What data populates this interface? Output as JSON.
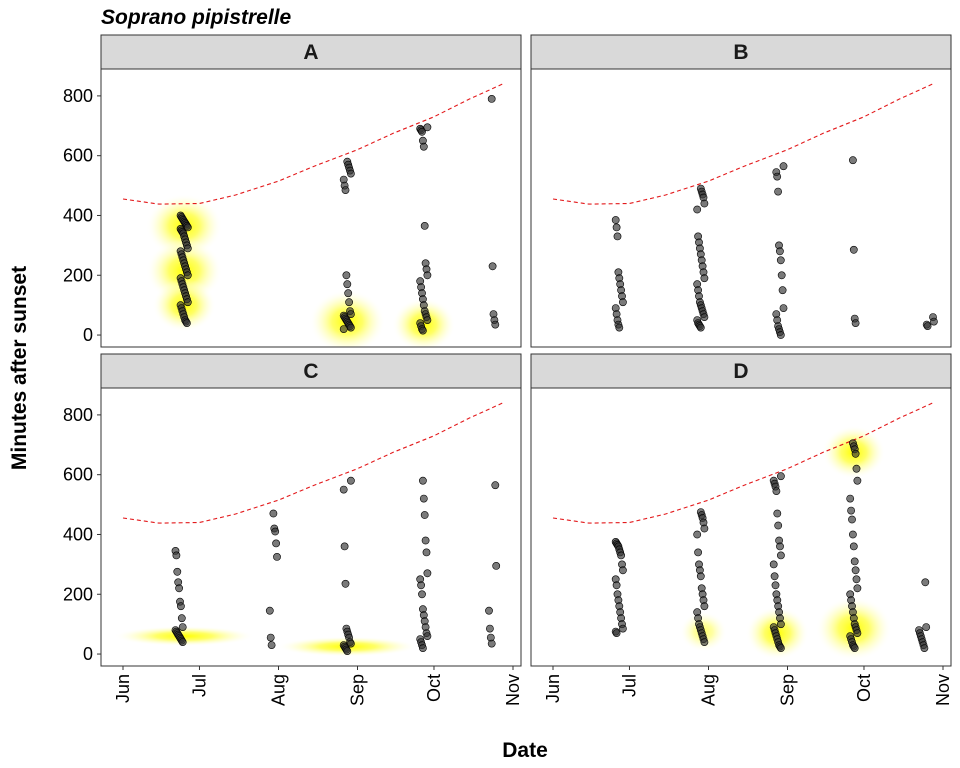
{
  "chart_data": {
    "type": "scatter",
    "title": "Soprano pipistrelle",
    "xlabel": "Date",
    "ylabel": "Minutes after sunset",
    "x_ticks": [
      "Jun",
      "Jul",
      "Aug",
      "Sep",
      "Oct",
      "Nov"
    ],
    "x_range": [
      "2021-06-01",
      "2021-11-01"
    ],
    "y_ticks": [
      0,
      200,
      400,
      600,
      800
    ],
    "ylim": [
      -40,
      890
    ],
    "grid": false,
    "colors": {
      "points": "#333333",
      "sunrise_line": "#e31a1c",
      "density": "#ffff00",
      "strip": "#d9d9d9"
    },
    "sunrise_curve": {
      "name": "",
      "style": "dashed",
      "x": [
        "2021-06-01",
        "2021-06-15",
        "2021-07-01",
        "2021-07-15",
        "2021-08-01",
        "2021-08-15",
        "2021-09-01",
        "2021-09-15",
        "2021-10-01",
        "2021-10-15",
        "2021-10-28"
      ],
      "y": [
        455,
        438,
        440,
        468,
        515,
        565,
        620,
        675,
        730,
        790,
        840
      ]
    },
    "panels": [
      {
        "label": "A",
        "groups": [
          {
            "date": "2021-06-25",
            "y": [
              400,
              395,
              390,
              385,
              380,
              375,
              370,
              365,
              360,
              355,
              350,
              345,
              340,
              330,
              320,
              310,
              300,
              290,
              280,
              270,
              260,
              250,
              240,
              230,
              220,
              210,
              200,
              190,
              180,
              170,
              160,
              150,
              140,
              130,
              120,
              110,
              100,
              90,
              80,
              70,
              60,
              50,
              45,
              40
            ]
          },
          {
            "date": "2021-08-28",
            "y": [
              580,
              570,
              560,
              550,
              540,
              520,
              500,
              485,
              200,
              170,
              140,
              110,
              80,
              70,
              65,
              60,
              55,
              50,
              45,
              40,
              35,
              30,
              25,
              20
            ]
          },
          {
            "date": "2021-09-27",
            "y": [
              695,
              690,
              685,
              680,
              650,
              630,
              365,
              240,
              220,
              200,
              180,
              160,
              140,
              120,
              100,
              80,
              70,
              60,
              50,
              40,
              30,
              20,
              15
            ]
          },
          {
            "date": "2021-10-24",
            "y": [
              790,
              230,
              70,
              50,
              35
            ]
          }
        ],
        "density_hotspots": [
          {
            "date": "2021-06-25",
            "y": 365,
            "intensity": "high"
          },
          {
            "date": "2021-06-25",
            "y": 215,
            "intensity": "high"
          },
          {
            "date": "2021-06-25",
            "y": 100,
            "intensity": "medium"
          },
          {
            "date": "2021-08-28",
            "y": 45,
            "intensity": "high"
          },
          {
            "date": "2021-09-27",
            "y": 35,
            "intensity": "medium"
          }
        ]
      },
      {
        "label": "B",
        "groups": [
          {
            "date": "2021-06-27",
            "y": [
              385,
              360,
              330,
              210,
              190,
              170,
              150,
              130,
              110,
              90,
              70,
              50,
              35,
              25
            ]
          },
          {
            "date": "2021-07-29",
            "y": [
              490,
              480,
              470,
              460,
              440,
              420,
              330,
              310,
              290,
              270,
              250,
              230,
              210,
              190,
              170,
              150,
              130,
              110,
              100,
              90,
              80,
              70,
              60,
              50,
              40,
              35,
              30,
              25
            ]
          },
          {
            "date": "2021-08-29",
            "y": [
              565,
              545,
              530,
              480,
              300,
              280,
              250,
              200,
              150,
              90,
              70,
              50,
              30,
              20,
              10,
              0
            ]
          },
          {
            "date": "2021-09-27",
            "y": [
              585,
              285,
              55,
              40
            ]
          },
          {
            "date": "2021-10-27",
            "y": [
              60,
              45,
              35,
              30
            ]
          }
        ],
        "density_hotspots": []
      },
      {
        "label": "C",
        "groups": [
          {
            "date": "2021-06-23",
            "y": [
              345,
              330,
              275,
              240,
              220,
              175,
              160,
              120,
              90,
              80,
              75,
              70,
              65,
              60,
              55,
              50,
              45,
              40
            ]
          },
          {
            "date": "2021-07-30",
            "y": [
              470,
              420,
              410,
              370,
              325,
              145,
              55,
              30
            ]
          },
          {
            "date": "2021-08-28",
            "y": [
              580,
              550,
              360,
              235,
              85,
              75,
              65,
              55,
              40,
              35,
              30,
              25,
              20,
              15,
              10
            ]
          },
          {
            "date": "2021-09-27",
            "y": [
              580,
              520,
              465,
              380,
              340,
              270,
              250,
              230,
              200,
              150,
              130,
              110,
              90,
              70,
              60,
              50,
              40,
              30,
              20
            ]
          },
          {
            "date": "2021-10-24",
            "y": [
              565,
              295,
              145,
              85,
              55,
              35
            ]
          }
        ],
        "density_hotspots": [
          {
            "date": "2021-06-25",
            "y": 60,
            "intensity": "medium",
            "shape": "wide"
          },
          {
            "date": "2021-08-28",
            "y": 25,
            "intensity": "medium",
            "shape": "wide"
          }
        ]
      },
      {
        "label": "D",
        "groups": [
          {
            "date": "2021-06-27",
            "y": [
              375,
              370,
              365,
              360,
              350,
              340,
              330,
              300,
              280,
              250,
              230,
              200,
              180,
              160,
              140,
              120,
              100,
              85,
              75,
              70
            ]
          },
          {
            "date": "2021-07-29",
            "y": [
              475,
              465,
              455,
              440,
              420,
              400,
              340,
              300,
              280,
              260,
              220,
              200,
              180,
              160,
              140,
              120,
              100,
              90,
              80,
              70,
              60,
              50,
              40
            ]
          },
          {
            "date": "2021-08-28",
            "y": [
              595,
              580,
              570,
              560,
              545,
              470,
              430,
              380,
              360,
              330,
              300,
              260,
              230,
              200,
              180,
              160,
              140,
              120,
              100,
              90,
              80,
              70,
              60,
              50,
              40,
              30,
              25,
              20
            ]
          },
          {
            "date": "2021-09-27",
            "y": [
              705,
              695,
              685,
              670,
              620,
              580,
              520,
              480,
              450,
              400,
              360,
              310,
              280,
              250,
              220,
              200,
              180,
              160,
              140,
              120,
              100,
              90,
              80,
              70,
              60,
              50,
              40,
              30,
              25,
              20
            ]
          },
          {
            "date": "2021-10-24",
            "y": [
              240,
              90,
              80,
              70,
              60,
              50,
              40,
              30,
              20
            ]
          }
        ],
        "density_hotspots": [
          {
            "date": "2021-07-30",
            "y": 75,
            "intensity": "low"
          },
          {
            "date": "2021-08-28",
            "y": 70,
            "intensity": "medium"
          },
          {
            "date": "2021-09-27",
            "y": 85,
            "intensity": "high"
          },
          {
            "date": "2021-09-27",
            "y": 675,
            "intensity": "medium"
          }
        ]
      }
    ]
  }
}
